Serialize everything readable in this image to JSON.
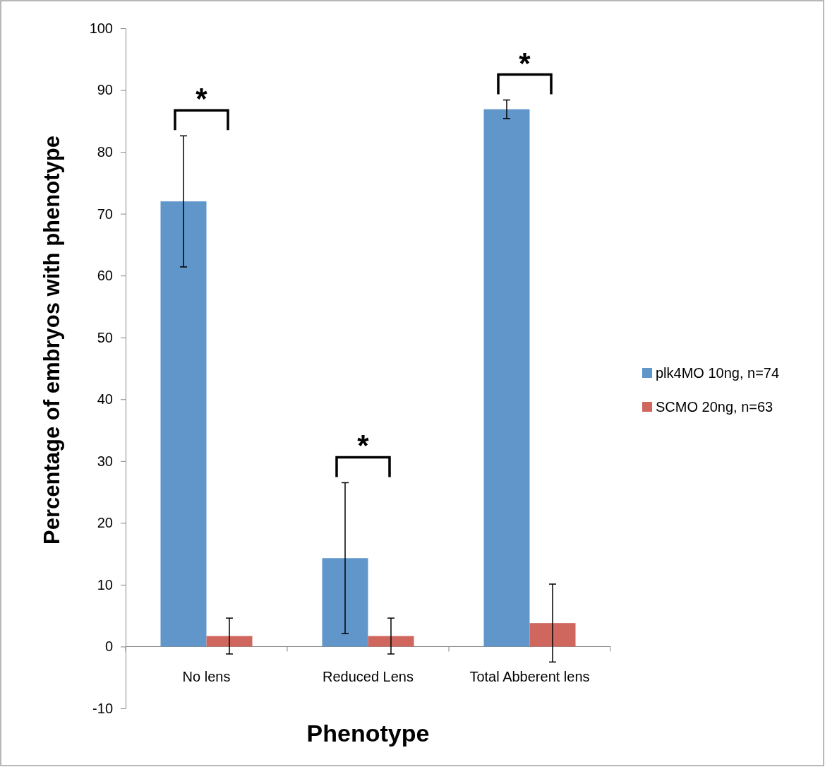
{
  "chart_data": {
    "type": "bar",
    "xlabel": "Phenotype",
    "ylabel": "Percentage of embryos with phenotype",
    "categories": [
      "No lens",
      "Reduced Lens",
      "Total Abberent lens"
    ],
    "series": [
      {
        "name": "plk4MO 10ng, n=74",
        "color": "#6096c9",
        "values": [
          72,
          14.3,
          86.9
        ],
        "errors": [
          10.6,
          12.2,
          1.5
        ]
      },
      {
        "name": "SCMO 20ng, n=63",
        "color": "#d0675f",
        "values": [
          1.7,
          1.7,
          3.8
        ],
        "errors": [
          2.9,
          2.9,
          6.3
        ]
      }
    ],
    "ylim": [
      -10,
      100
    ],
    "yticks": [
      -10,
      0,
      10,
      20,
      30,
      40,
      50,
      60,
      70,
      80,
      90,
      100
    ],
    "grid": false,
    "legend": "right",
    "annotations": [
      "*",
      "*",
      "*"
    ]
  }
}
